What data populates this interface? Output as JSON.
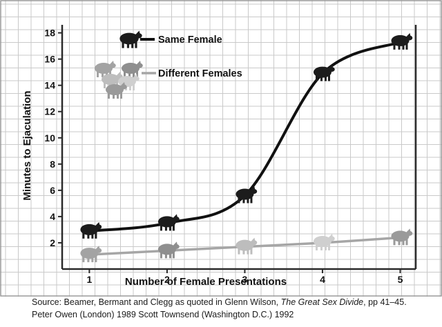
{
  "chart_data": {
    "type": "line",
    "xlabel": "Number of Female Presentations",
    "ylabel": "Minutes to Ejaculation",
    "x": [
      1,
      2,
      3,
      4,
      5
    ],
    "xlim": [
      0.65,
      5.2
    ],
    "ylim": [
      0,
      18.4
    ],
    "xticks": [
      1,
      2,
      3,
      4,
      5
    ],
    "yticks": [
      2,
      4,
      6,
      8,
      10,
      12,
      14,
      16,
      18
    ],
    "grid": true,
    "legend_position": "top-left",
    "series": [
      {
        "name": "Same Female",
        "values": [
          2.9,
          3.5,
          5.6,
          14.9,
          17.3
        ],
        "color": "#111111",
        "marker": "sheep-icon"
      },
      {
        "name": "Different Females",
        "values": [
          1.1,
          1.4,
          1.7,
          2.0,
          2.4
        ],
        "color": "#a6a6a6",
        "marker": "sheep-icon"
      }
    ]
  },
  "caption": {
    "line1_prefix": "Source: Beamer, Bermant and Clegg as quoted in Glenn Wilson, ",
    "line1_title": "The Great Sex Divide",
    "line1_suffix": ", pp 41–45.",
    "line2": "Peter Owen (London) 1989 Scott Townsend (Washington D.C.) 1992"
  },
  "colors": {
    "grid": "#c9c9c9",
    "frame": "#2a2a2a",
    "sheep_same": "#1c1c1c",
    "sheep_different": [
      "#a3a3a3",
      "#8f8f8f",
      "#bdbdbd",
      "#cfcfcf",
      "#9a9a9a"
    ]
  }
}
